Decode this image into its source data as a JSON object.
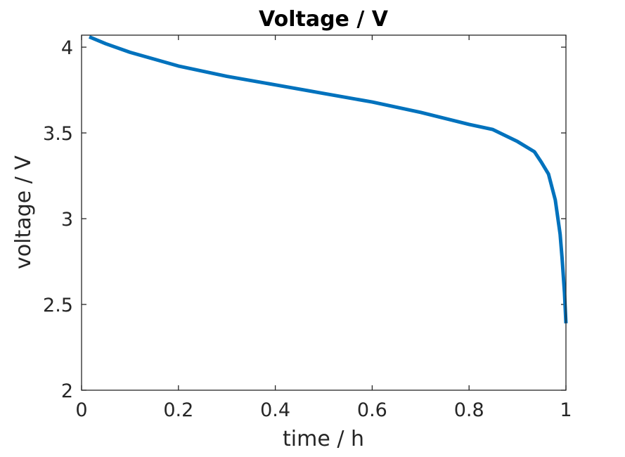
{
  "chart_data": {
    "type": "line",
    "title": "Voltage / V",
    "xlabel": "time / h",
    "ylabel": "voltage / V",
    "xlim": [
      0,
      1
    ],
    "ylim": [
      2,
      4.07
    ],
    "xticks": [
      0,
      0.2,
      0.4,
      0.6,
      0.8,
      1
    ],
    "xtick_labels": [
      "0",
      "0.2",
      "0.4",
      "0.6",
      "0.8",
      "1"
    ],
    "yticks": [
      2,
      2.5,
      3,
      3.5,
      4
    ],
    "ytick_labels": [
      "2",
      "2.5",
      "3",
      "3.5",
      "4"
    ],
    "grid": false,
    "series": [
      {
        "color": "#0072BD",
        "x": [
          0.016,
          0.05,
          0.1,
          0.2,
          0.3,
          0.4,
          0.5,
          0.6,
          0.7,
          0.8,
          0.849,
          0.9,
          0.935,
          0.949,
          0.964,
          0.978,
          0.988,
          0.992,
          0.997,
          1.0
        ],
        "y": [
          4.06,
          4.02,
          3.97,
          3.89,
          3.83,
          3.78,
          3.73,
          3.68,
          3.62,
          3.55,
          3.52,
          3.45,
          3.39,
          3.33,
          3.26,
          3.11,
          2.91,
          2.77,
          2.57,
          2.39
        ]
      }
    ]
  }
}
